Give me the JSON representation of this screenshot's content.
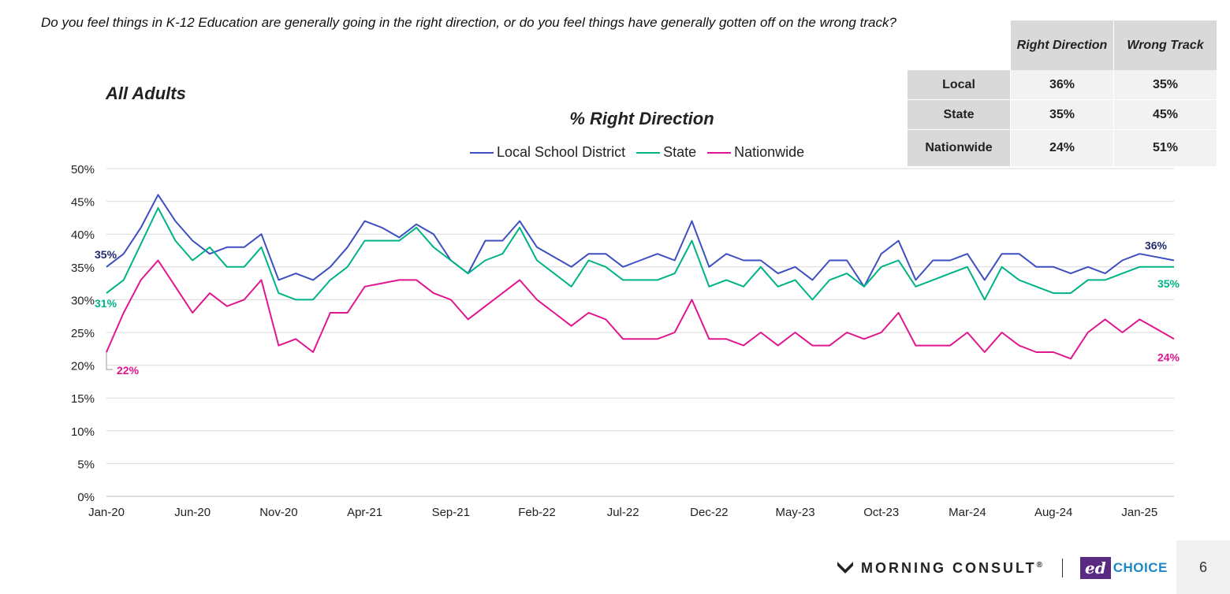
{
  "question": "Do you feel things in K-12 Education are generally going in the right direction, or do you feel things have generally gotten off on the wrong track?",
  "segment": "All Adults",
  "summary_table": {
    "headers": [
      "Right Direction",
      "Wrong Track"
    ],
    "rows": [
      {
        "label": "Local",
        "right": "36%",
        "wrong": "35%"
      },
      {
        "label": "State",
        "right": "35%",
        "wrong": "45%"
      },
      {
        "label": "Nationwide",
        "right": "24%",
        "wrong": "51%"
      }
    ]
  },
  "chart_data": {
    "type": "line",
    "title": "% Right Direction",
    "xlabel": "",
    "ylabel": "",
    "ylim": [
      0,
      50
    ],
    "yticks": [
      0,
      5,
      10,
      15,
      20,
      25,
      30,
      35,
      40,
      45,
      50
    ],
    "ytick_labels": [
      "0%",
      "5%",
      "10%",
      "15%",
      "20%",
      "25%",
      "30%",
      "35%",
      "40%",
      "45%",
      "50%"
    ],
    "x_tick_labels": [
      "Jan-20",
      "Jun-20",
      "Nov-20",
      "Apr-21",
      "Sep-21",
      "Feb-22",
      "Jul-22",
      "Dec-22",
      "May-23",
      "Oct-23",
      "Mar-24",
      "Aug-24",
      "Jan-25"
    ],
    "grid": true,
    "legend_position": "top",
    "series": [
      {
        "name": "Local School District",
        "color": "#3d4fc1",
        "values": [
          35,
          37,
          41,
          46,
          42,
          39,
          37,
          38,
          38,
          40,
          33,
          34,
          33,
          35,
          38,
          42,
          41,
          39.5,
          41.5,
          40,
          36,
          34,
          39,
          39,
          42,
          38,
          36.5,
          35,
          37,
          37,
          35,
          36,
          37,
          36,
          42,
          35,
          37,
          36,
          36,
          34,
          35,
          33,
          36,
          36,
          32,
          37,
          39,
          33,
          36,
          36,
          37,
          33,
          37,
          37,
          35,
          35,
          34,
          35,
          34,
          36,
          37,
          36.5,
          36
        ],
        "start_label": "35%",
        "end_label": "36%"
      },
      {
        "name": "State",
        "color": "#00b386",
        "values": [
          31,
          33,
          38.5,
          44,
          39,
          36,
          38,
          35,
          35,
          38,
          31,
          30,
          30,
          33,
          35,
          39,
          39,
          39,
          41,
          38,
          36,
          34,
          36,
          37,
          41,
          36,
          34,
          32,
          36,
          35,
          33,
          33,
          33,
          34,
          39,
          32,
          33,
          32,
          35,
          32,
          33,
          30,
          33,
          34,
          32,
          35,
          36,
          32,
          33,
          34,
          35,
          30,
          35,
          33,
          32,
          31,
          31,
          33,
          33,
          34,
          35,
          35,
          35
        ],
        "start_label": "31%",
        "end_label": "35%"
      },
      {
        "name": "Nationwide",
        "color": "#e0168f",
        "values": [
          22,
          28,
          33,
          36,
          32,
          28,
          31,
          29,
          30,
          33,
          23,
          24,
          22,
          28,
          28,
          32,
          32.5,
          33,
          33,
          31,
          30,
          27,
          29,
          31,
          33,
          30,
          28,
          26,
          28,
          27,
          24,
          24,
          24,
          25,
          30,
          24,
          24,
          23,
          25,
          23,
          25,
          23,
          23,
          25,
          24,
          25,
          28,
          23,
          23,
          23,
          25,
          22,
          25,
          23,
          22,
          22,
          21,
          25,
          27,
          25,
          27,
          25.5,
          24
        ],
        "start_label": "22%",
        "end_label": "24%"
      }
    ]
  },
  "footer": {
    "brand": "MORNING CONSULT",
    "trademark": "®",
    "partner_ed": "ed",
    "partner_choice": "CHOICE",
    "page_number": "6"
  }
}
